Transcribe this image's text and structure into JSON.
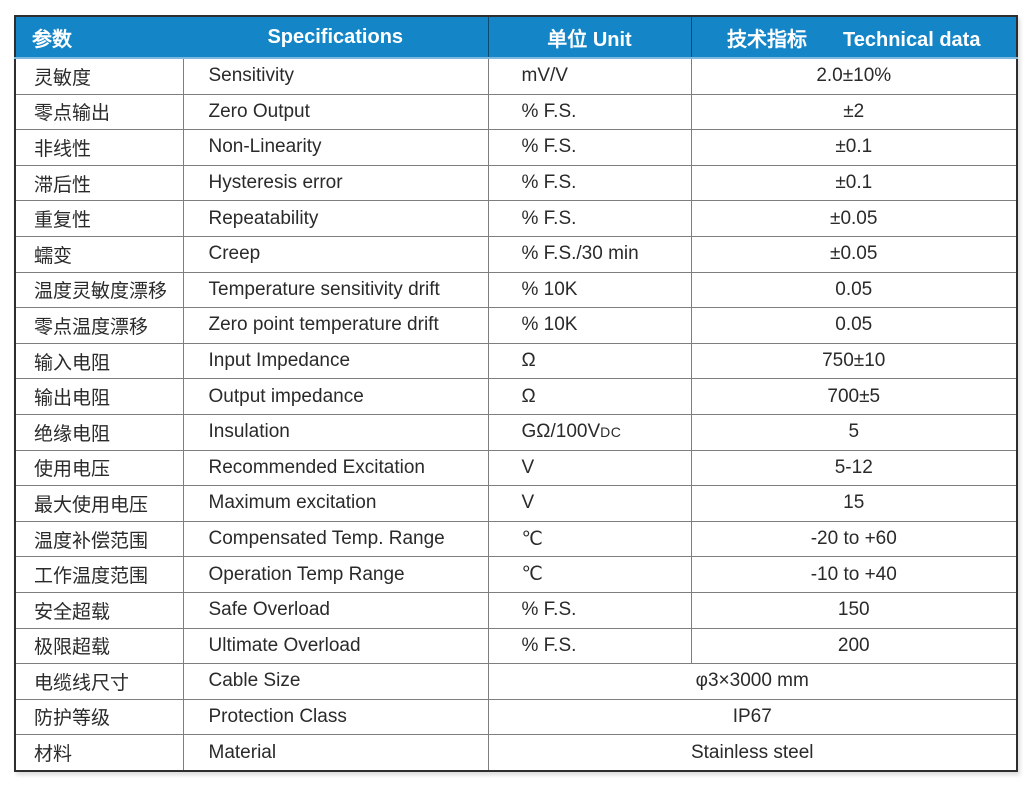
{
  "colors": {
    "header_bg": "#1486c8",
    "header_text": "#ffffff",
    "header_underline": "#7db9de",
    "grid_line": "#7e7e7e",
    "outer_border": "#2e2e2e",
    "body_text": "#2a2a2a"
  },
  "header": {
    "param": "参数",
    "specifications": "Specifications",
    "unit": "单位 Unit",
    "technical_cn": "技术指标",
    "technical_en": "Technical data"
  },
  "rows": [
    {
      "param": "灵敏度",
      "spec": "Sensitivity",
      "unit": "mV/V",
      "value": "2.0±10%"
    },
    {
      "param": "零点输出",
      "spec": "Zero Output",
      "unit": "% F.S.",
      "value": "±2"
    },
    {
      "param": "非线性",
      "spec": "Non-Linearity",
      "unit": "% F.S.",
      "value": "±0.1"
    },
    {
      "param": "滞后性",
      "spec": "Hysteresis error",
      "unit": "% F.S.",
      "value": "±0.1"
    },
    {
      "param": "重复性",
      "spec": "Repeatability",
      "unit": "% F.S.",
      "value": "±0.05"
    },
    {
      "param": "蠕变",
      "spec": "Creep",
      "unit": "% F.S./30 min",
      "value": "±0.05"
    },
    {
      "param": "温度灵敏度漂移",
      "spec": "Temperature sensitivity drift",
      "unit": "% 10K",
      "value": "0.05"
    },
    {
      "param": "零点温度漂移",
      "spec": "Zero point temperature drift",
      "unit": "% 10K",
      "value": "0.05"
    },
    {
      "param": "输入电阻",
      "spec": "Input Impedance",
      "unit": "Ω",
      "value": "750±10"
    },
    {
      "param": "输出电阻",
      "spec": "Output impedance",
      "unit": "Ω",
      "value": "700±5"
    },
    {
      "param": "绝缘电阻",
      "spec": "Insulation",
      "unit": "GΩ/100V",
      "unit_small": "DC",
      "value": "5"
    },
    {
      "param": "使用电压",
      "spec": "Recommended Excitation",
      "unit": "V",
      "value": "5-12"
    },
    {
      "param": "最大使用电压",
      "spec": "Maximum excitation",
      "unit": "V",
      "value": "15"
    },
    {
      "param": "温度补偿范围",
      "spec": "Compensated Temp. Range",
      "unit": "℃",
      "value": "-20 to +60"
    },
    {
      "param": "工作温度范围",
      "spec": "Operation Temp Range",
      "unit": "℃",
      "value": "-10 to +40"
    },
    {
      "param": "安全超载",
      "spec": "Safe Overload",
      "unit": "% F.S.",
      "value": "150"
    },
    {
      "param": "极限超载",
      "spec": "Ultimate Overload",
      "unit": "% F.S.",
      "value": "200"
    },
    {
      "param": "电缆线尺寸",
      "spec": "Cable Size",
      "merged_value": "φ3×3000 mm"
    },
    {
      "param": "防护等级",
      "spec": "Protection Class",
      "merged_value": "IP67"
    },
    {
      "param": "材料",
      "spec": "Material",
      "merged_value": "Stainless steel"
    }
  ]
}
